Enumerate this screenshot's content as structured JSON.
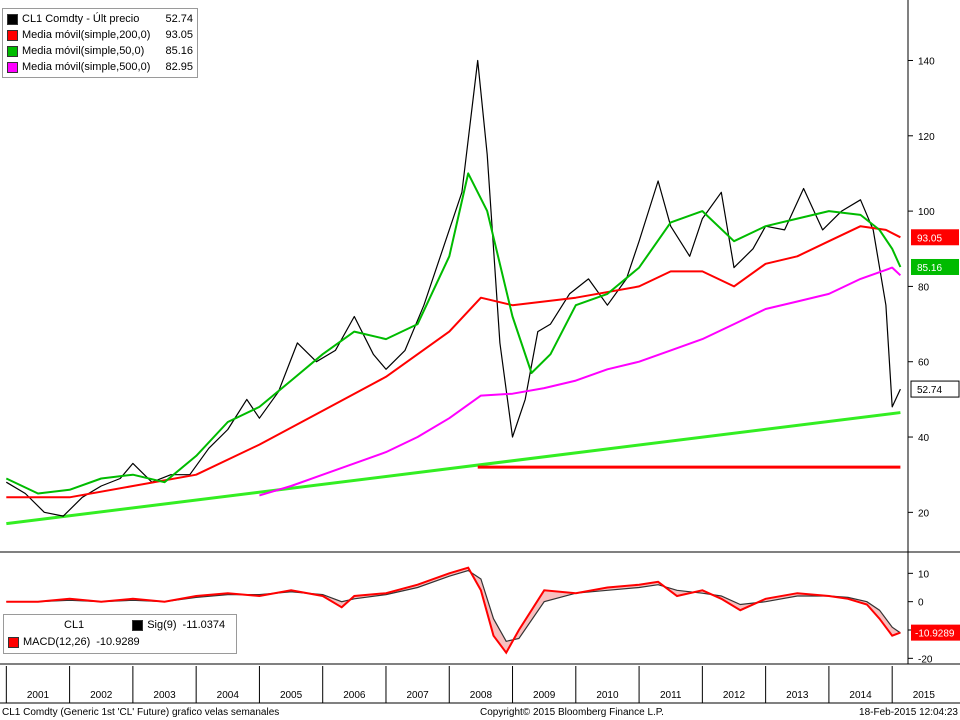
{
  "chart_data": {
    "type": "line",
    "title": "",
    "xlabel": "",
    "ylabel": "",
    "ylim": [
      10,
      155
    ],
    "yticks": [
      20,
      40,
      60,
      80,
      100,
      120,
      140
    ],
    "xticks": [
      "2001",
      "2002",
      "2003",
      "2004",
      "2005",
      "2006",
      "2007",
      "2008",
      "2009",
      "2010",
      "2011",
      "2012",
      "2013",
      "2014",
      "2015"
    ],
    "grid": false,
    "legend_position": "top-left",
    "series": [
      {
        "name": "CL1 Comdty - Últ precio",
        "last": "52.74",
        "color": "#000000",
        "x": [
          2001.0,
          2001.3,
          2001.6,
          2001.9,
          2002.2,
          2002.5,
          2002.8,
          2003.0,
          2003.3,
          2003.6,
          2003.9,
          2004.2,
          2004.5,
          2004.8,
          2005.0,
          2005.3,
          2005.6,
          2005.9,
          2006.2,
          2006.5,
          2006.8,
          2007.0,
          2007.3,
          2007.6,
          2007.9,
          2008.2,
          2008.45,
          2008.6,
          2008.8,
          2009.0,
          2009.2,
          2009.4,
          2009.6,
          2009.9,
          2010.2,
          2010.5,
          2010.8,
          2011.0,
          2011.3,
          2011.5,
          2011.8,
          2012.0,
          2012.3,
          2012.5,
          2012.8,
          2013.0,
          2013.3,
          2013.6,
          2013.9,
          2014.2,
          2014.5,
          2014.7,
          2014.9,
          2015.0,
          2015.13
        ],
        "y": [
          28,
          25,
          20,
          19,
          24,
          27,
          29,
          33,
          28,
          30,
          30,
          37,
          42,
          50,
          45,
          52,
          65,
          60,
          63,
          72,
          62,
          58,
          63,
          75,
          90,
          105,
          140,
          115,
          65,
          40,
          50,
          68,
          70,
          78,
          82,
          75,
          82,
          92,
          108,
          96,
          88,
          98,
          105,
          85,
          90,
          96,
          95,
          106,
          95,
          100,
          103,
          95,
          75,
          48,
          52.74
        ]
      },
      {
        "name": "Media móvil(simple,200,0)",
        "last": "93.05",
        "color": "#ff0000",
        "x": [
          2001.0,
          2002.0,
          2003.0,
          2004.0,
          2005.0,
          2006.0,
          2007.0,
          2008.0,
          2008.5,
          2009.0,
          2010.0,
          2011.0,
          2011.5,
          2012.0,
          2012.5,
          2013.0,
          2013.5,
          2014.0,
          2014.5,
          2014.9,
          2015.13
        ],
        "y": [
          24,
          24,
          27,
          30,
          38,
          47,
          56,
          68,
          77,
          75,
          77,
          80,
          84,
          84,
          80,
          86,
          88,
          92,
          96,
          95,
          93.05
        ]
      },
      {
        "name": "Media móvil(simple,50,0)",
        "last": "85.16",
        "color": "#00bb00",
        "x": [
          2001.0,
          2001.5,
          2002.0,
          2002.5,
          2003.0,
          2003.5,
          2004.0,
          2004.5,
          2005.0,
          2005.5,
          2006.0,
          2006.5,
          2007.0,
          2007.5,
          2008.0,
          2008.3,
          2008.6,
          2009.0,
          2009.3,
          2009.6,
          2010.0,
          2010.5,
          2011.0,
          2011.5,
          2012.0,
          2012.5,
          2013.0,
          2013.5,
          2014.0,
          2014.5,
          2014.8,
          2015.0,
          2015.13
        ],
        "y": [
          29,
          25,
          26,
          29,
          30,
          28,
          35,
          44,
          48,
          55,
          62,
          68,
          66,
          70,
          88,
          110,
          100,
          72,
          57,
          62,
          75,
          78,
          85,
          97,
          100,
          92,
          96,
          98,
          100,
          99,
          95,
          90,
          85.16
        ]
      },
      {
        "name": "Media móvil(simple,500,0)",
        "last": "82.95",
        "color": "#ff00ff",
        "x": [
          2005.0,
          2005.5,
          2006.0,
          2006.5,
          2007.0,
          2007.5,
          2008.0,
          2008.5,
          2009.0,
          2009.5,
          2010.0,
          2010.5,
          2011.0,
          2011.5,
          2012.0,
          2012.5,
          2013.0,
          2013.5,
          2014.0,
          2014.5,
          2015.0,
          2015.13
        ],
        "y": [
          24.5,
          27,
          30,
          33,
          36,
          40,
          45,
          51,
          51.5,
          53,
          55,
          58,
          60,
          63,
          66,
          70,
          74,
          76,
          78,
          82,
          85,
          82.95
        ]
      }
    ],
    "annotations": [
      {
        "kind": "trendline",
        "color": "#33ee22",
        "x": [
          2001.0,
          2015.13
        ],
        "y": [
          17,
          46.5
        ]
      },
      {
        "kind": "hline",
        "color": "#ff0000",
        "x": [
          2008.45,
          2015.13
        ],
        "y": [
          32,
          32
        ]
      }
    ],
    "last_value_labels": [
      {
        "value": "93.05",
        "color": "#ff0000"
      },
      {
        "value": "85.16",
        "color": "#00bb00"
      },
      {
        "value": "52.74",
        "color": "#000000"
      }
    ]
  },
  "macd_panel": {
    "legend_title": "CL1",
    "sig_label": "Sig(9)",
    "sig_value": "-11.0374",
    "macd_label": "MACD(12,26)",
    "macd_value": "-10.9289",
    "yticks": [
      10,
      0,
      -10,
      -20
    ],
    "ylim": [
      -22,
      14
    ],
    "last_label": "-10.9289",
    "macd": {
      "x": [
        2001.0,
        2001.5,
        2002.0,
        2002.5,
        2003.0,
        2003.5,
        2004.0,
        2004.5,
        2005.0,
        2005.5,
        2006.0,
        2006.3,
        2006.5,
        2007.0,
        2007.5,
        2008.0,
        2008.3,
        2008.5,
        2008.7,
        2008.9,
        2009.1,
        2009.5,
        2010.0,
        2010.5,
        2011.0,
        2011.3,
        2011.6,
        2012.0,
        2012.3,
        2012.6,
        2013.0,
        2013.5,
        2014.0,
        2014.3,
        2014.6,
        2014.8,
        2015.0,
        2015.13
      ],
      "y": [
        0,
        0,
        1,
        0,
        1,
        0,
        2,
        3,
        2,
        4,
        2,
        -2,
        2,
        3,
        6,
        10,
        12,
        4,
        -12,
        -18,
        -10,
        4,
        3,
        5,
        6,
        7,
        2,
        4,
        1,
        -3,
        1,
        3,
        2,
        1,
        -1,
        -6,
        -12,
        -10.9289
      ]
    },
    "signal": {
      "x": [
        2001.0,
        2001.5,
        2002.0,
        2002.5,
        2003.0,
        2003.5,
        2004.0,
        2004.5,
        2005.0,
        2005.5,
        2006.0,
        2006.3,
        2006.5,
        2007.0,
        2007.5,
        2008.0,
        2008.3,
        2008.5,
        2008.7,
        2008.9,
        2009.1,
        2009.5,
        2010.0,
        2010.5,
        2011.0,
        2011.3,
        2011.6,
        2012.0,
        2012.3,
        2012.6,
        2013.0,
        2013.5,
        2014.0,
        2014.3,
        2014.6,
        2014.8,
        2015.0,
        2015.13
      ],
      "y": [
        0,
        0,
        0.5,
        0,
        0.5,
        0,
        1.5,
        2.5,
        2.5,
        3.5,
        2.5,
        0,
        1,
        2.5,
        5,
        9,
        11,
        8,
        -6,
        -14,
        -13,
        0,
        3,
        4,
        5,
        6,
        4,
        3,
        2,
        -1,
        0,
        2,
        2,
        1.5,
        0,
        -3,
        -9,
        -11.0374
      ]
    }
  },
  "footer": {
    "left": "CL1 Comdty (Generic 1st 'CL' Future) grafico velas semanales",
    "center": "Copyright© 2015 Bloomberg Finance L.P.",
    "right": "18-Feb-2015 12:04:23"
  }
}
